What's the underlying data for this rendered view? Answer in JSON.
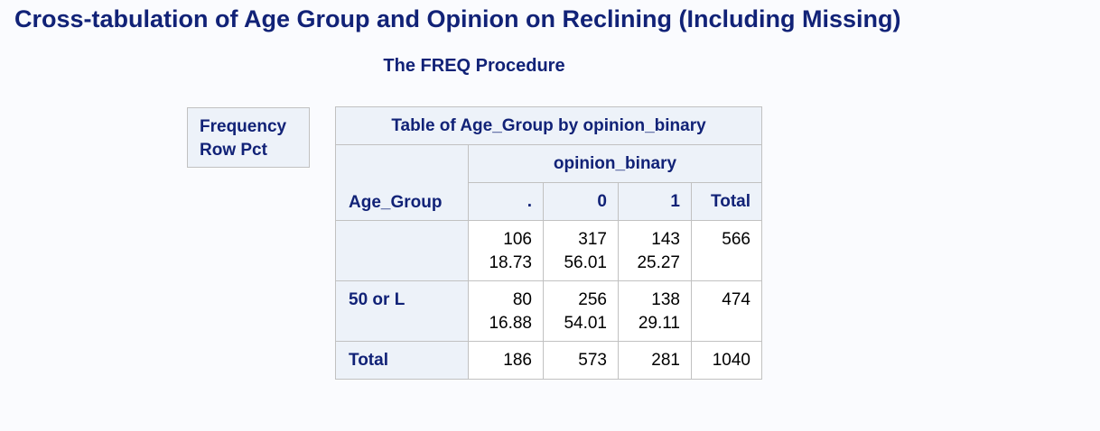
{
  "title": "Cross-tabulation of Age Group and Opinion on Reclining (Including Missing)",
  "subtitle": "The FREQ Procedure",
  "key": [
    "Frequency",
    "Row Pct"
  ],
  "table": {
    "caption": "Table of Age_Group by opinion_binary",
    "column_var": "opinion_binary",
    "row_var": "Age_Group",
    "columns": [
      ".",
      "0",
      "1",
      "Total"
    ],
    "rows": [
      {
        "label": "",
        "freq": [
          "106",
          "317",
          "143",
          "566"
        ],
        "rowpct": [
          "18.73",
          "56.01",
          "25.27",
          ""
        ]
      },
      {
        "label": "50 or L",
        "freq": [
          "80",
          "256",
          "138",
          "474"
        ],
        "rowpct": [
          "16.88",
          "54.01",
          "29.11",
          ""
        ]
      }
    ],
    "total": {
      "label": "Total",
      "values": [
        "186",
        "573",
        "281",
        "1040"
      ]
    }
  }
}
